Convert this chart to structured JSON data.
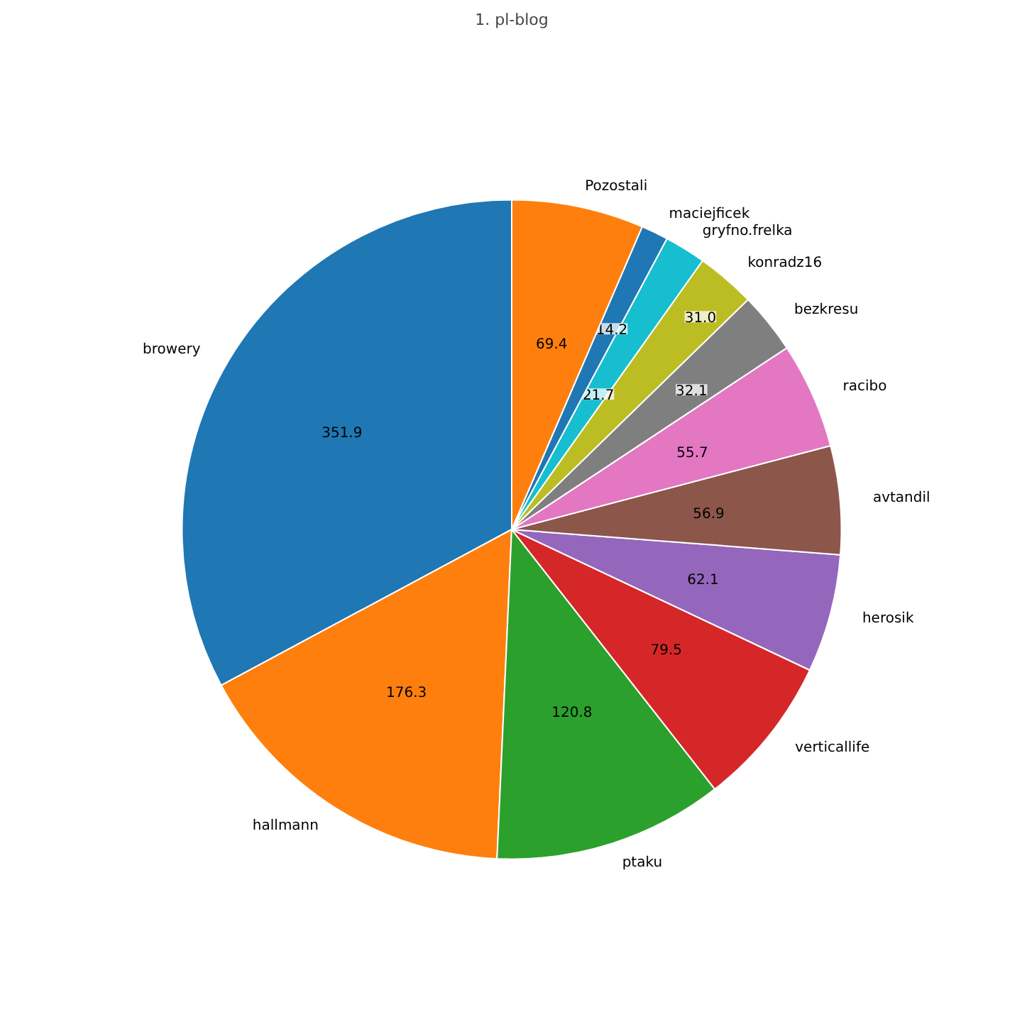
{
  "chart_data": {
    "type": "pie",
    "title": "1. pl-blog",
    "categories": [
      "browery",
      "hallmann",
      "ptaku",
      "verticallife",
      "herosik",
      "avtandil",
      "racibo",
      "bezkresu",
      "konradz16",
      "gryfno.frelka",
      "maciejficek",
      "Pozostali"
    ],
    "values": [
      351.9,
      176.3,
      120.8,
      79.5,
      62.1,
      56.9,
      55.7,
      32.1,
      31.0,
      21.7,
      14.2,
      69.4
    ],
    "colors": [
      "#1f77b4",
      "#ff7f0e",
      "#2ca02c",
      "#d62728",
      "#9467bd",
      "#8c564b",
      "#e377c2",
      "#7f7f7f",
      "#bcbd22",
      "#17becf",
      "#1f77b4",
      "#ff7f0e"
    ],
    "value_labels": [
      "351.9",
      "176.3",
      "120.8",
      "79.5",
      "62.1",
      "56.9",
      "55.7",
      "32.1",
      "31.0",
      "21.7",
      "14.2",
      "69.4"
    ]
  }
}
